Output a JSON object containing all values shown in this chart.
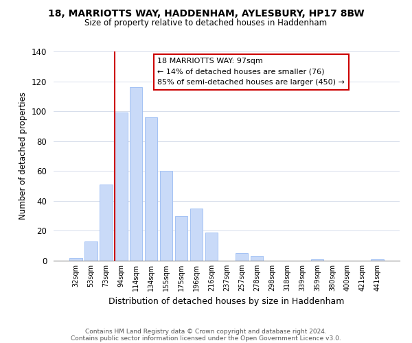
{
  "title1": "18, MARRIOTTS WAY, HADDENHAM, AYLESBURY, HP17 8BW",
  "title2": "Size of property relative to detached houses in Haddenham",
  "xlabel": "Distribution of detached houses by size in Haddenham",
  "ylabel": "Number of detached properties",
  "bar_labels": [
    "32sqm",
    "53sqm",
    "73sqm",
    "94sqm",
    "114sqm",
    "134sqm",
    "155sqm",
    "175sqm",
    "196sqm",
    "216sqm",
    "237sqm",
    "257sqm",
    "278sqm",
    "298sqm",
    "318sqm",
    "339sqm",
    "359sqm",
    "380sqm",
    "400sqm",
    "421sqm",
    "441sqm"
  ],
  "bar_values": [
    2,
    13,
    51,
    99,
    116,
    96,
    60,
    30,
    35,
    19,
    0,
    5,
    3,
    0,
    0,
    0,
    1,
    0,
    0,
    0,
    1
  ],
  "bar_color": "#c9daf8",
  "bar_edge_color": "#a4c2f4",
  "vline_color": "#cc0000",
  "ylim": [
    0,
    140
  ],
  "yticks": [
    0,
    20,
    40,
    60,
    80,
    100,
    120,
    140
  ],
  "annotation_title": "18 MARRIOTTS WAY: 97sqm",
  "annotation_line1": "← 14% of detached houses are smaller (76)",
  "annotation_line2": "85% of semi-detached houses are larger (450) →",
  "annotation_box_color": "#ffffff",
  "annotation_box_edge": "#cc0000",
  "footer1": "Contains HM Land Registry data © Crown copyright and database right 2024.",
  "footer2": "Contains public sector information licensed under the Open Government Licence v3.0."
}
